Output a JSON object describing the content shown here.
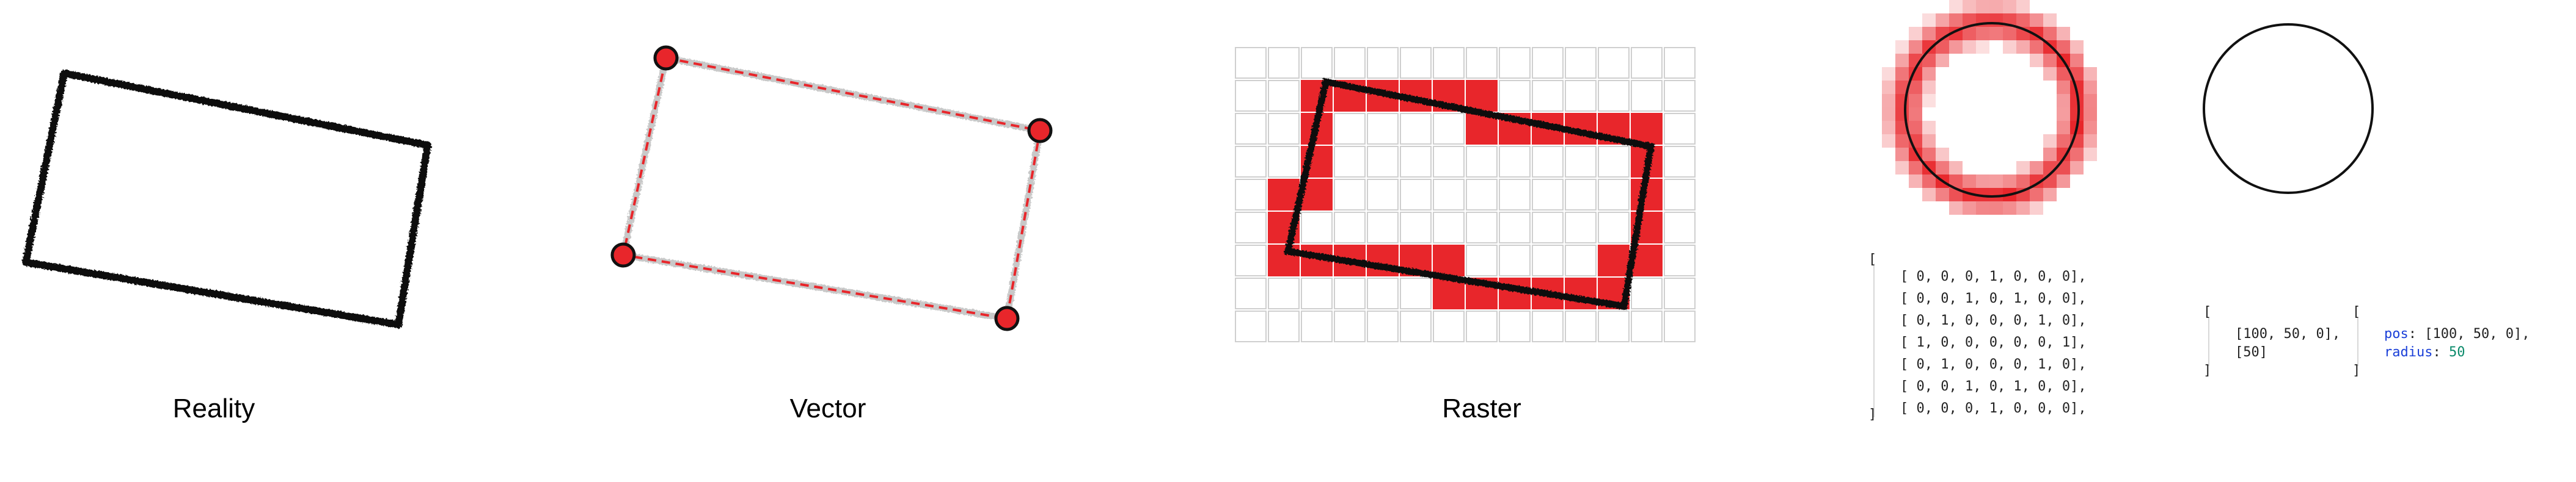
{
  "panels": {
    "reality": {
      "caption": "Reality"
    },
    "vector": {
      "caption": "Vector"
    },
    "raster": {
      "caption": "Raster"
    }
  },
  "colors": {
    "stroke": "#111111",
    "accent": "#e8262b",
    "grid": "#cfcfcf",
    "vector_shadow": "#c8c8c8",
    "code_key": "#1a3fd8",
    "code_number": "#0a8a6a"
  },
  "raster_grid": {
    "cols": 14,
    "rows": 9,
    "filled": [
      [
        0,
        0,
        0,
        0,
        0,
        0,
        0,
        0,
        0,
        0,
        0,
        0,
        0,
        0
      ],
      [
        0,
        0,
        1,
        1,
        1,
        1,
        1,
        1,
        0,
        0,
        0,
        0,
        0,
        0
      ],
      [
        0,
        0,
        1,
        0,
        0,
        0,
        0,
        1,
        1,
        1,
        1,
        1,
        1,
        0
      ],
      [
        0,
        0,
        1,
        0,
        0,
        0,
        0,
        0,
        0,
        0,
        0,
        0,
        1,
        0
      ],
      [
        0,
        1,
        1,
        0,
        0,
        0,
        0,
        0,
        0,
        0,
        0,
        0,
        1,
        0
      ],
      [
        0,
        1,
        0,
        0,
        0,
        0,
        0,
        0,
        0,
        0,
        0,
        0,
        1,
        0
      ],
      [
        0,
        1,
        1,
        1,
        1,
        1,
        1,
        0,
        0,
        0,
        0,
        1,
        1,
        0
      ],
      [
        0,
        0,
        0,
        0,
        0,
        0,
        1,
        1,
        1,
        1,
        1,
        1,
        0,
        0
      ],
      [
        0,
        0,
        0,
        0,
        0,
        0,
        0,
        0,
        0,
        0,
        0,
        0,
        0,
        0
      ]
    ]
  },
  "matrix_code": {
    "open": "[",
    "close": "]",
    "rows": [
      "[ 0, 0, 0, 1, 0, 0, 0],",
      "[ 0, 0, 1, 0, 1, 0, 0],",
      "[ 0, 1, 0, 0, 0, 1, 0],",
      "[ 1, 0, 0, 0, 0, 0, 1],",
      "[ 0, 1, 0, 0, 0, 1, 0],",
      "[ 0, 0, 1, 0, 1, 0, 0],",
      "[ 0, 0, 0, 1, 0, 0, 0],"
    ]
  },
  "array_code": {
    "open": "[",
    "line1": "[100, 50, 0],",
    "line2": "[50]",
    "close": "]"
  },
  "object_code": {
    "open": "[",
    "pos_key": "pos",
    "pos_value": "[100, 50, 0],",
    "radius_key": "radius",
    "radius_value": "50",
    "close": "]"
  }
}
